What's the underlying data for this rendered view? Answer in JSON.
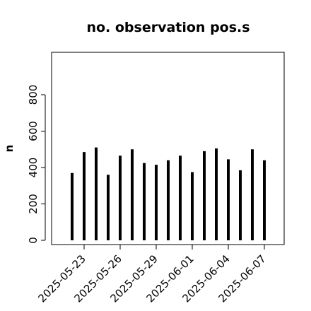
{
  "chart_data": {
    "type": "bar",
    "title": "no. observation pos.s",
    "xlabel": "",
    "ylabel": "n",
    "x": [
      "2025-05-22",
      "2025-05-23",
      "2025-05-24",
      "2025-05-25",
      "2025-05-26",
      "2025-05-27",
      "2025-05-28",
      "2025-05-29",
      "2025-05-30",
      "2025-05-31",
      "2025-06-01",
      "2025-06-02",
      "2025-06-03",
      "2025-06-04",
      "2025-06-05",
      "2025-06-06",
      "2025-06-07"
    ],
    "values": [
      370,
      485,
      510,
      360,
      465,
      500,
      425,
      415,
      440,
      465,
      375,
      490,
      505,
      445,
      385,
      500,
      440
    ],
    "ylim": [
      0,
      1000
    ],
    "yticks": [
      0,
      200,
      400,
      600,
      800
    ],
    "xtick_labels": [
      "2025-05-23",
      "2025-05-26",
      "2025-05-29",
      "2025-06-01",
      "2025-06-04",
      "2025-06-07"
    ],
    "highlight_label": "2025-05-29",
    "bar_color": "#000000",
    "highlight_color": "#228B22",
    "grid": false,
    "legend": "none"
  }
}
